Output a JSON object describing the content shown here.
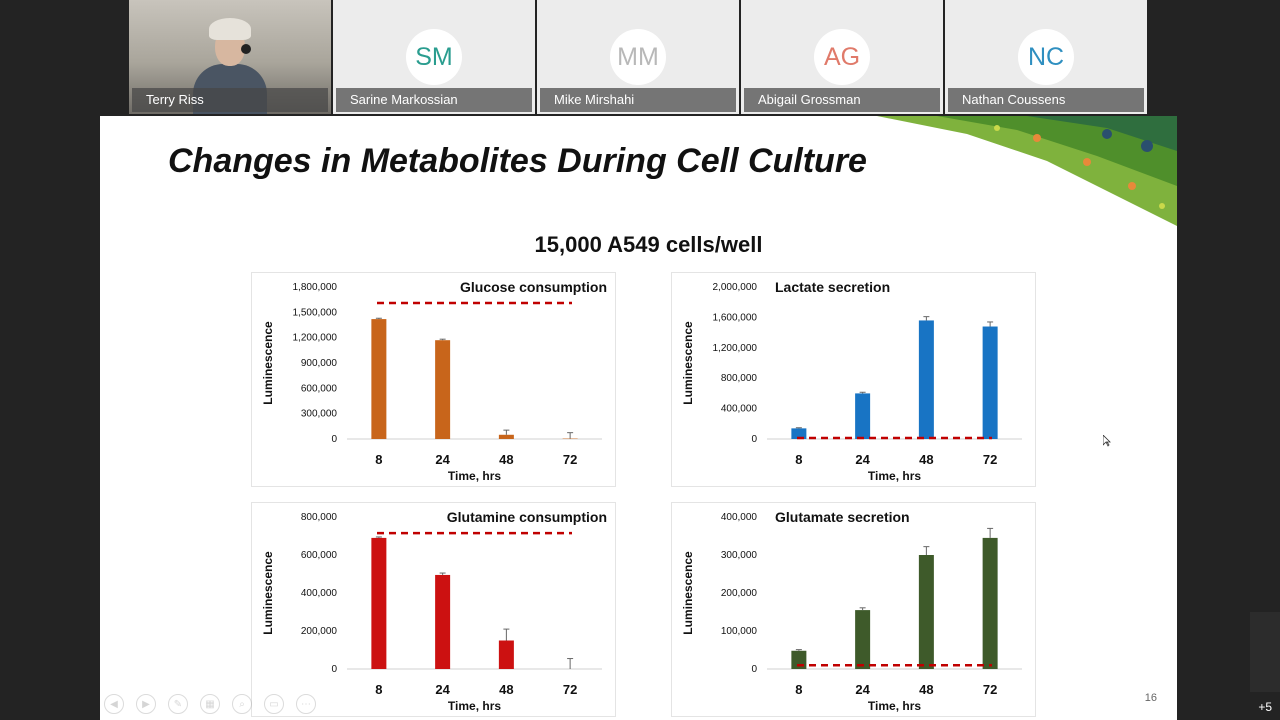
{
  "participants": [
    {
      "name": "Terry Riss",
      "initials": "",
      "video": true
    },
    {
      "name": "Sarine Markossian",
      "initials": "SM",
      "color": "#2a9d8f"
    },
    {
      "name": "Mike Mirshahi",
      "initials": "MM",
      "color": "#b8b8b8"
    },
    {
      "name": "Abigail Grossman",
      "initials": "AG",
      "color": "#e07a6a"
    },
    {
      "name": "Nathan Coussens",
      "initials": "NC",
      "color": "#2f8fc0"
    }
  ],
  "slide": {
    "title": "Changes in Metabolites During Cell Culture",
    "subtitle": "15,000 A549 cells/well",
    "page_number": "16"
  },
  "extra_participants": "+5",
  "chart_data": [
    {
      "type": "bar",
      "title": "Glucose consumption",
      "xlabel": "Time, hrs",
      "ylabel": "Luminescence",
      "categories": [
        "8",
        "24",
        "48",
        "72"
      ],
      "values": [
        1420000,
        1170000,
        50000,
        5000
      ],
      "errors": [
        10000,
        12000,
        55000,
        70000
      ],
      "ylim": [
        0,
        1800000
      ],
      "yticks": [
        "0",
        "300,000",
        "600,000",
        "900,000",
        "1,200,000",
        "1,500,000",
        "1,800,000"
      ],
      "reference_line": 1610000,
      "color": "#c8651b",
      "line_color": "#c00000"
    },
    {
      "type": "bar",
      "title": "Lactate secretion",
      "xlabel": "Time, hrs",
      "ylabel": "Luminescence",
      "categories": [
        "8",
        "24",
        "48",
        "72"
      ],
      "values": [
        140000,
        600000,
        1560000,
        1480000
      ],
      "errors": [
        8000,
        15000,
        50000,
        60000
      ],
      "ylim": [
        0,
        2000000
      ],
      "yticks": [
        "0",
        "400,000",
        "800,000",
        "1,200,000",
        "1,600,000",
        "2,000,000"
      ],
      "reference_line": 0,
      "color": "#1874c4",
      "line_color": "#c00000"
    },
    {
      "type": "bar",
      "title": "Glutamine consumption",
      "xlabel": "Time, hrs",
      "ylabel": "Luminescence",
      "categories": [
        "8",
        "24",
        "48",
        "72"
      ],
      "values": [
        690000,
        495000,
        150000,
        0
      ],
      "errors": [
        5000,
        10000,
        60000,
        55000
      ],
      "ylim": [
        0,
        800000
      ],
      "yticks": [
        "0",
        "200,000",
        "400,000",
        "600,000",
        "800,000"
      ],
      "reference_line": 715000,
      "color": "#cc1111",
      "line_color": "#c00000"
    },
    {
      "type": "bar",
      "title": "Glutamate secretion",
      "xlabel": "Time, hrs",
      "ylabel": "Luminescence",
      "categories": [
        "8",
        "24",
        "48",
        "72"
      ],
      "values": [
        48000,
        155000,
        300000,
        345000
      ],
      "errors": [
        3000,
        6000,
        22000,
        25000
      ],
      "ylim": [
        0,
        400000
      ],
      "yticks": [
        "0",
        "100,000",
        "200,000",
        "300,000",
        "400,000"
      ],
      "reference_line": 10000,
      "color": "#3e5a2a",
      "line_color": "#c00000"
    }
  ]
}
